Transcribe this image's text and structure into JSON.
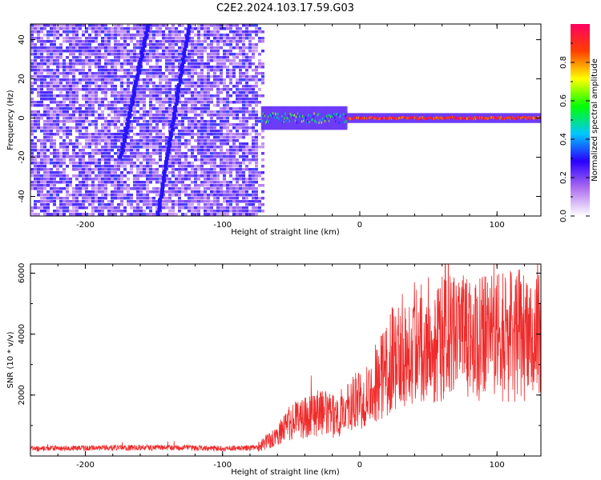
{
  "title": "C2E2.2024.103.17.59.G03",
  "chart_data": [
    {
      "type": "heatmap",
      "xlabel": "Height of straight line (km)",
      "ylabel": "Frequency (Hz)",
      "xlim": [
        -240,
        132
      ],
      "ylim": [
        -50,
        48
      ],
      "xticks": [
        "-200",
        "-100",
        "0",
        "100"
      ],
      "yticks": [
        "40",
        "20",
        "0",
        "-20",
        "-40"
      ],
      "xtick_values": [
        -200,
        -100,
        0,
        100
      ],
      "ytick_values": [
        40,
        20,
        0,
        -20,
        -40
      ],
      "colorbar": {
        "label": "Normalized spectral amplitude",
        "ticks": [
          "0.0",
          "0.2",
          "0.4",
          "0.6",
          "0.8"
        ],
        "tick_values": [
          0.0,
          0.2,
          0.4,
          0.6,
          0.8
        ],
        "range": [
          0,
          1
        ],
        "colors": [
          "#ffffff",
          "#b070f0",
          "#2a00ff",
          "#00c8ff",
          "#00ff00",
          "#ffff00",
          "#ff4000",
          "#ff0060"
        ]
      },
      "features": {
        "broadband_noise_extent_km": [
          -240,
          -70
        ],
        "narrowband_signal_start_km": -72,
        "narrowband_signal_frequency_hz": 0,
        "diagonal_streaks": [
          {
            "x0": -155,
            "y0": 48,
            "x1": -175,
            "y1": -20
          },
          {
            "x0": -125,
            "y0": 48,
            "x1": -148,
            "y1": -50
          }
        ]
      }
    },
    {
      "type": "line",
      "xlabel": "Height of straight line (km)",
      "ylabel": "SNR (10 * v/v)",
      "xlim": [
        -240,
        132
      ],
      "ylim": [
        0,
        6300
      ],
      "xticks": [
        "-200",
        "-100",
        "0",
        "100"
      ],
      "yticks": [
        "6000",
        "4000",
        "2000"
      ],
      "xtick_values": [
        -200,
        -100,
        0,
        100
      ],
      "ytick_values": [
        6000,
        4000,
        2000
      ],
      "series": [
        {
          "color": "#ef2a2a",
          "x": [
            -240,
            -200,
            -150,
            -100,
            -75,
            -60,
            -50,
            -40,
            -30,
            -20,
            -10,
            0,
            10,
            20,
            30,
            40,
            50,
            60,
            70,
            80,
            90,
            100,
            110,
            120,
            132
          ],
          "y": [
            240,
            260,
            280,
            250,
            270,
            700,
            1100,
            1300,
            1450,
            1300,
            1500,
            1900,
            2300,
            2900,
            3450,
            3750,
            3800,
            3850,
            3900,
            3800,
            3850,
            3900,
            3950,
            3950,
            4000
          ]
        }
      ]
    }
  ]
}
